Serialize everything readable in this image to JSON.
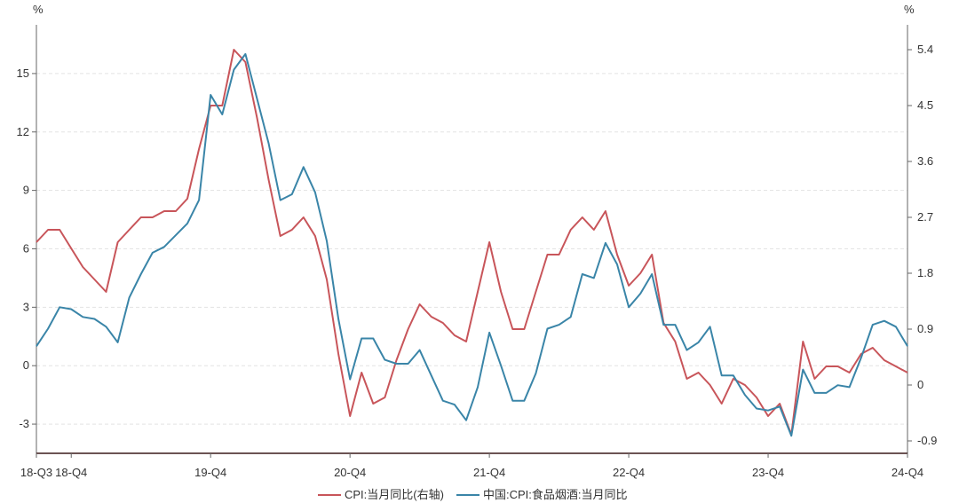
{
  "chart_data": {
    "type": "line",
    "left_unit": "%",
    "right_unit": "%",
    "left_axis": {
      "ticks": [
        -3,
        0,
        3,
        6,
        9,
        12,
        15
      ],
      "range": [
        -4.5,
        17.5
      ]
    },
    "right_axis": {
      "ticks": [
        -0.9,
        0,
        0.9,
        1.8,
        2.7,
        3.6,
        4.5,
        5.4
      ],
      "range": [
        -1.1,
        5.8
      ]
    },
    "x_labels": [
      "18-Q3",
      "18-Q4",
      "19-Q4",
      "20-Q4",
      "21-Q4",
      "22-Q4",
      "23-Q4",
      "24-Q4"
    ],
    "x_label_index": [
      0,
      3,
      15,
      27,
      39,
      51,
      63,
      75
    ],
    "x_count": 76,
    "grid": "horizontal-dashed",
    "legend_position": "bottom-center",
    "series": [
      {
        "name": "CPI:当月同比(右轴)",
        "axis": "right",
        "color": "#c8555a",
        "values": [
          2.3,
          2.5,
          2.5,
          2.2,
          1.9,
          1.7,
          1.5,
          2.3,
          2.5,
          2.7,
          2.7,
          2.8,
          2.8,
          3.0,
          3.8,
          4.5,
          4.5,
          5.4,
          5.2,
          4.3,
          3.3,
          2.4,
          2.5,
          2.7,
          2.4,
          1.7,
          0.5,
          -0.5,
          0.2,
          -0.3,
          -0.2,
          0.4,
          0.9,
          1.3,
          1.1,
          1.0,
          0.8,
          0.7,
          1.5,
          2.3,
          1.5,
          0.9,
          0.9,
          1.5,
          2.1,
          2.1,
          2.5,
          2.7,
          2.5,
          2.8,
          2.1,
          1.6,
          1.8,
          2.1,
          1.0,
          0.7,
          0.1,
          0.2,
          0.0,
          -0.3,
          0.1,
          0.0,
          -0.2,
          -0.5,
          -0.3,
          -0.8,
          0.7,
          0.1,
          0.3,
          0.3,
          0.2,
          0.5,
          0.6,
          0.4,
          0.3,
          0.2
        ]
      },
      {
        "name": "中国:CPI:食品烟酒:当月同比",
        "axis": "left",
        "color": "#3a85a8",
        "values": [
          1.0,
          1.9,
          3.0,
          2.9,
          2.5,
          2.4,
          2.0,
          1.2,
          3.5,
          4.7,
          5.8,
          6.1,
          6.7,
          7.3,
          8.5,
          13.9,
          12.9,
          15.2,
          16.0,
          13.7,
          11.4,
          8.5,
          8.8,
          10.2,
          8.9,
          6.4,
          2.4,
          -0.7,
          1.4,
          1.4,
          0.3,
          0.1,
          0.1,
          0.8,
          -0.5,
          -1.8,
          -2.0,
          -2.8,
          -1.1,
          1.7,
          0.0,
          -1.8,
          -1.8,
          -0.4,
          1.9,
          2.1,
          2.5,
          4.7,
          4.5,
          6.3,
          5.2,
          3.0,
          3.7,
          4.7,
          2.1,
          2.1,
          0.8,
          1.2,
          2.0,
          -0.5,
          -0.5,
          -1.5,
          -2.2,
          -2.3,
          -2.1,
          -3.6,
          -0.2,
          -1.4,
          -1.4,
          -1.0,
          -1.1,
          0.4,
          2.1,
          2.3,
          2.0,
          1.0
        ]
      }
    ]
  }
}
